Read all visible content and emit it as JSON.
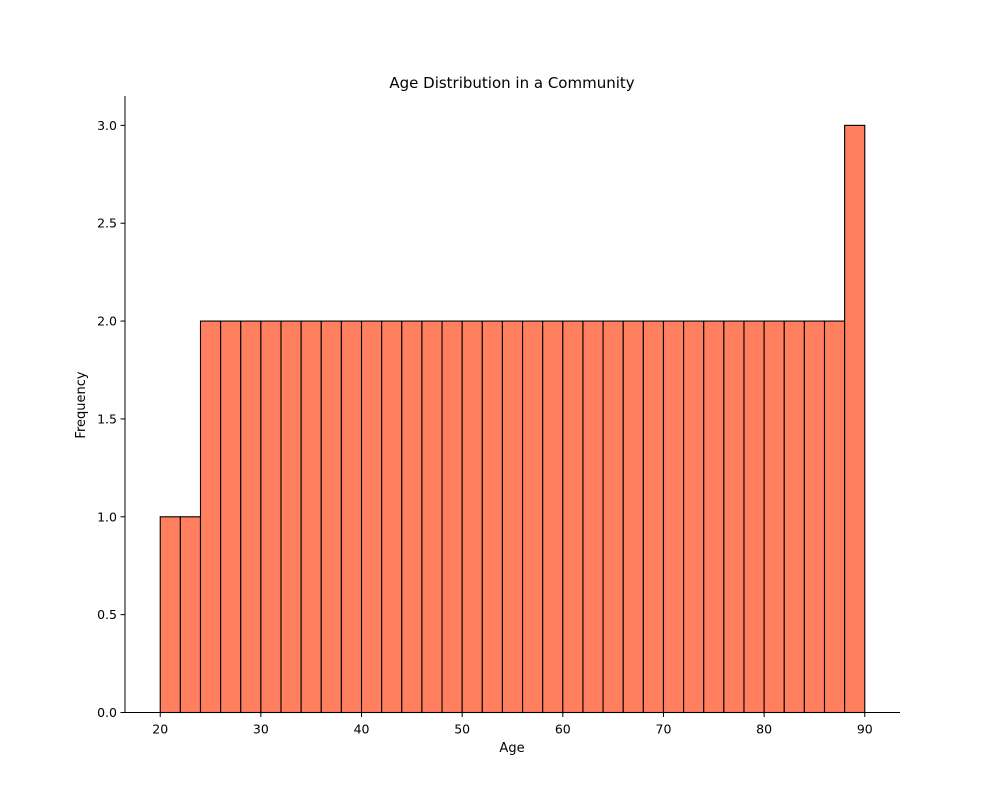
{
  "chart_data": {
    "type": "bar",
    "title": "Age Distribution in a Community",
    "xlabel": "Age",
    "ylabel": "Frequency",
    "bin_width": 2,
    "bins": [
      {
        "start": 20,
        "end": 22,
        "count": 1
      },
      {
        "start": 22,
        "end": 24,
        "count": 1
      },
      {
        "start": 24,
        "end": 26,
        "count": 2
      },
      {
        "start": 26,
        "end": 28,
        "count": 2
      },
      {
        "start": 28,
        "end": 30,
        "count": 2
      },
      {
        "start": 30,
        "end": 32,
        "count": 2
      },
      {
        "start": 32,
        "end": 34,
        "count": 2
      },
      {
        "start": 34,
        "end": 36,
        "count": 2
      },
      {
        "start": 36,
        "end": 38,
        "count": 2
      },
      {
        "start": 38,
        "end": 40,
        "count": 2
      },
      {
        "start": 40,
        "end": 42,
        "count": 2
      },
      {
        "start": 42,
        "end": 44,
        "count": 2
      },
      {
        "start": 44,
        "end": 46,
        "count": 2
      },
      {
        "start": 46,
        "end": 48,
        "count": 2
      },
      {
        "start": 48,
        "end": 50,
        "count": 2
      },
      {
        "start": 50,
        "end": 52,
        "count": 2
      },
      {
        "start": 52,
        "end": 54,
        "count": 2
      },
      {
        "start": 54,
        "end": 56,
        "count": 2
      },
      {
        "start": 56,
        "end": 58,
        "count": 2
      },
      {
        "start": 58,
        "end": 60,
        "count": 2
      },
      {
        "start": 60,
        "end": 62,
        "count": 2
      },
      {
        "start": 62,
        "end": 64,
        "count": 2
      },
      {
        "start": 64,
        "end": 66,
        "count": 2
      },
      {
        "start": 66,
        "end": 68,
        "count": 2
      },
      {
        "start": 68,
        "end": 70,
        "count": 2
      },
      {
        "start": 70,
        "end": 72,
        "count": 2
      },
      {
        "start": 72,
        "end": 74,
        "count": 2
      },
      {
        "start": 74,
        "end": 76,
        "count": 2
      },
      {
        "start": 76,
        "end": 78,
        "count": 2
      },
      {
        "start": 78,
        "end": 80,
        "count": 2
      },
      {
        "start": 80,
        "end": 82,
        "count": 2
      },
      {
        "start": 82,
        "end": 84,
        "count": 2
      },
      {
        "start": 84,
        "end": 86,
        "count": 2
      },
      {
        "start": 86,
        "end": 88,
        "count": 2
      },
      {
        "start": 88,
        "end": 90,
        "count": 3
      }
    ],
    "xlim": [
      16.5,
      93.5
    ],
    "ylim": [
      0,
      3.15
    ],
    "x_ticks": [
      20,
      30,
      40,
      50,
      60,
      70,
      80,
      90
    ],
    "x_tick_labels": [
      "20",
      "30",
      "40",
      "50",
      "60",
      "70",
      "80",
      "90"
    ],
    "y_ticks": [
      0,
      0.5,
      1.0,
      1.5,
      2.0,
      2.5,
      3.0
    ],
    "y_tick_labels": [
      "0.0",
      "0.5",
      "1.0",
      "1.5",
      "2.0",
      "2.5",
      "3.0"
    ],
    "bar_color": "#ff7f5f",
    "edge_color": "#000000",
    "grid": false,
    "legend": "none"
  }
}
